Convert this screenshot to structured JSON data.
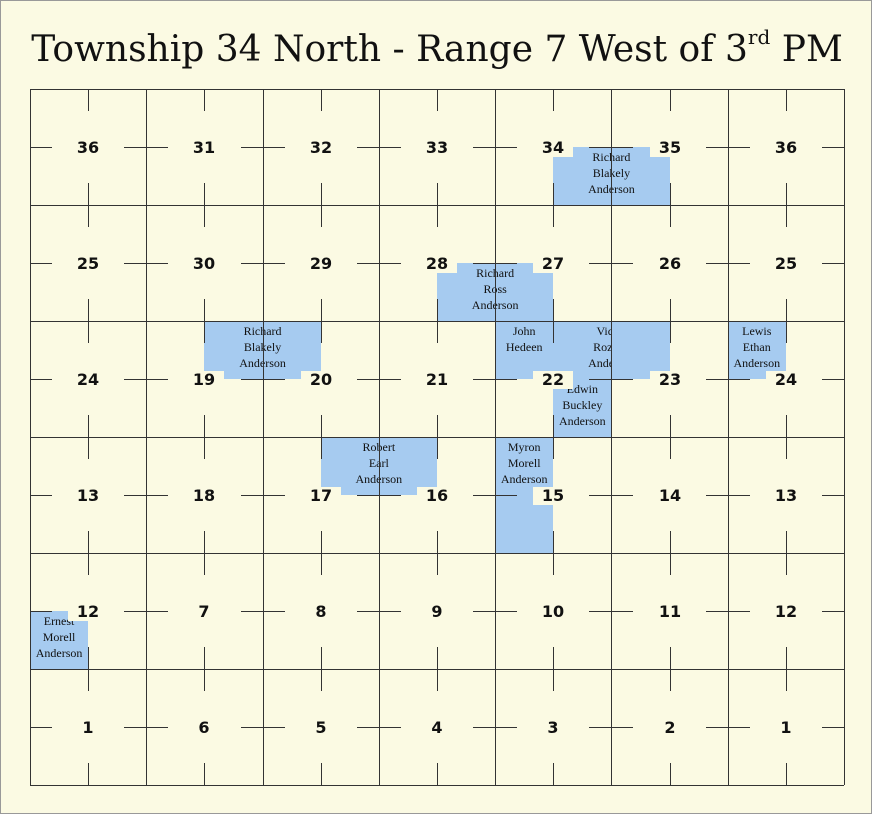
{
  "title": {
    "main": "Township 34 North - Range 7 West of 3",
    "sup": "rd",
    "suffix": " PM"
  },
  "sections": [
    [
      "36",
      "31",
      "32",
      "33",
      "34",
      "35",
      "36"
    ],
    [
      "25",
      "30",
      "29",
      "28",
      "27",
      "26",
      "25"
    ],
    [
      "24",
      "19",
      "20",
      "21",
      "22",
      "23",
      "24"
    ],
    [
      "13",
      "18",
      "17",
      "16",
      "15",
      "14",
      "13"
    ],
    [
      "12",
      "7",
      "8",
      "9",
      "10",
      "11",
      "12"
    ],
    [
      "1",
      "6",
      "5",
      "4",
      "3",
      "2",
      "1"
    ]
  ],
  "parcels": [
    {
      "lines": [
        "Richard",
        "Blakely",
        "Anderson"
      ],
      "cells": [
        [
          4,
          0,
          3,
          1
        ]
      ]
    },
    {
      "lines": [
        "Richard",
        "Ross",
        "Anderson"
      ],
      "cells": [
        [
          3,
          1,
          3,
          1
        ]
      ]
    },
    {
      "lines": [
        "Richard",
        "Blakely",
        "Anderson"
      ],
      "cells": [
        [
          1,
          2,
          1,
          0
        ]
      ]
    },
    {
      "lines": [
        "John",
        "Hedeen"
      ],
      "cells": [
        [
          4,
          2,
          0,
          0
        ]
      ]
    },
    {
      "lines": [
        "Victor",
        "Rozelle",
        "Anderson"
      ],
      "cells": [
        [
          4,
          2,
          1,
          0
        ],
        [
          5,
          2,
          0,
          0
        ]
      ]
    },
    {
      "lines": [
        "Lewis",
        "Ethan",
        "Anderson"
      ],
      "cells": [
        [
          6,
          2,
          0,
          0
        ]
      ]
    },
    {
      "lines": [
        "Edwin",
        "Buckley",
        "Anderson"
      ],
      "cells": [
        [
          4,
          2,
          3,
          3
        ]
      ]
    },
    {
      "lines": [
        "Robert",
        "Earl",
        "Anderson"
      ],
      "cells": [
        [
          2,
          3,
          1,
          2
        ]
      ]
    },
    {
      "lines": [
        "Myron",
        "Morell",
        "Anderson"
      ],
      "cells": [
        [
          4,
          3,
          0,
          0
        ],
        [
          4,
          3,
          2,
          2
        ]
      ]
    },
    {
      "lines": [
        "Ernest",
        "Morell",
        "Anderson"
      ],
      "cells": [
        [
          0,
          4,
          2,
          2
        ]
      ]
    }
  ]
}
